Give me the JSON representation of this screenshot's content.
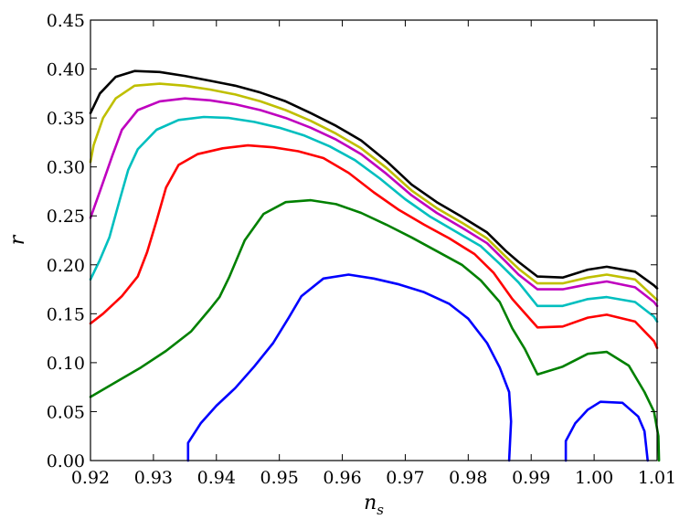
{
  "chart_data": {
    "type": "line",
    "title": "",
    "xlabel": "n",
    "xlabel_sub": "s",
    "ylabel": "r",
    "xlim": [
      0.92,
      1.01
    ],
    "ylim": [
      0.0,
      0.45
    ],
    "xticks": [
      "0.92",
      "0.93",
      "0.94",
      "0.95",
      "0.96",
      "0.97",
      "0.98",
      "0.99",
      "1.00",
      "1.01"
    ],
    "yticks": [
      "0.00",
      "0.05",
      "0.10",
      "0.15",
      "0.20",
      "0.25",
      "0.30",
      "0.35",
      "0.40",
      "0.45"
    ],
    "grid": false,
    "legend": false,
    "series": [
      {
        "color": "#000000",
        "points": [
          [
            0.92,
            0.355
          ],
          [
            0.9215,
            0.375
          ],
          [
            0.924,
            0.392
          ],
          [
            0.927,
            0.398
          ],
          [
            0.931,
            0.397
          ],
          [
            0.935,
            0.393
          ],
          [
            0.939,
            0.388
          ],
          [
            0.943,
            0.383
          ],
          [
            0.947,
            0.376
          ],
          [
            0.951,
            0.367
          ],
          [
            0.955,
            0.355
          ],
          [
            0.959,
            0.342
          ],
          [
            0.963,
            0.327
          ],
          [
            0.967,
            0.306
          ],
          [
            0.971,
            0.282
          ],
          [
            0.975,
            0.264
          ],
          [
            0.979,
            0.249
          ],
          [
            0.983,
            0.233
          ],
          [
            0.986,
            0.214
          ],
          [
            0.988,
            0.203
          ],
          [
            0.991,
            0.188
          ],
          [
            0.995,
            0.187
          ],
          [
            0.999,
            0.195
          ],
          [
            1.002,
            0.198
          ],
          [
            1.0065,
            0.193
          ],
          [
            1.0095,
            0.179
          ],
          [
            1.01,
            0.176
          ]
        ]
      },
      {
        "color": "#bfbf00",
        "points": [
          [
            0.92,
            0.305
          ],
          [
            0.9205,
            0.322
          ],
          [
            0.922,
            0.35
          ],
          [
            0.924,
            0.37
          ],
          [
            0.927,
            0.383
          ],
          [
            0.931,
            0.385
          ],
          [
            0.935,
            0.383
          ],
          [
            0.939,
            0.379
          ],
          [
            0.943,
            0.374
          ],
          [
            0.947,
            0.367
          ],
          [
            0.951,
            0.358
          ],
          [
            0.955,
            0.347
          ],
          [
            0.959,
            0.334
          ],
          [
            0.963,
            0.319
          ],
          [
            0.967,
            0.299
          ],
          [
            0.971,
            0.276
          ],
          [
            0.975,
            0.258
          ],
          [
            0.979,
            0.243
          ],
          [
            0.983,
            0.227
          ],
          [
            0.986,
            0.208
          ],
          [
            0.988,
            0.196
          ],
          [
            0.991,
            0.181
          ],
          [
            0.995,
            0.181
          ],
          [
            0.999,
            0.187
          ],
          [
            1.002,
            0.19
          ],
          [
            1.0065,
            0.185
          ],
          [
            1.0095,
            0.167
          ],
          [
            1.01,
            0.164
          ]
        ]
      },
      {
        "color": "#bf00bf",
        "points": [
          [
            0.92,
            0.248
          ],
          [
            0.9215,
            0.275
          ],
          [
            0.9235,
            0.312
          ],
          [
            0.925,
            0.338
          ],
          [
            0.9275,
            0.358
          ],
          [
            0.931,
            0.367
          ],
          [
            0.935,
            0.37
          ],
          [
            0.939,
            0.368
          ],
          [
            0.943,
            0.364
          ],
          [
            0.947,
            0.358
          ],
          [
            0.951,
            0.35
          ],
          [
            0.955,
            0.34
          ],
          [
            0.959,
            0.328
          ],
          [
            0.963,
            0.313
          ],
          [
            0.967,
            0.293
          ],
          [
            0.971,
            0.271
          ],
          [
            0.975,
            0.253
          ],
          [
            0.979,
            0.238
          ],
          [
            0.983,
            0.222
          ],
          [
            0.986,
            0.203
          ],
          [
            0.988,
            0.19
          ],
          [
            0.991,
            0.175
          ],
          [
            0.995,
            0.175
          ],
          [
            0.999,
            0.18
          ],
          [
            1.002,
            0.183
          ],
          [
            1.0065,
            0.177
          ],
          [
            1.0095,
            0.162
          ],
          [
            1.01,
            0.158
          ]
        ]
      },
      {
        "color": "#00bfbf",
        "points": [
          [
            0.92,
            0.185
          ],
          [
            0.9215,
            0.205
          ],
          [
            0.923,
            0.228
          ],
          [
            0.9245,
            0.263
          ],
          [
            0.926,
            0.297
          ],
          [
            0.9275,
            0.318
          ],
          [
            0.9305,
            0.338
          ],
          [
            0.934,
            0.348
          ],
          [
            0.938,
            0.351
          ],
          [
            0.942,
            0.35
          ],
          [
            0.946,
            0.346
          ],
          [
            0.95,
            0.34
          ],
          [
            0.954,
            0.332
          ],
          [
            0.958,
            0.321
          ],
          [
            0.962,
            0.307
          ],
          [
            0.966,
            0.288
          ],
          [
            0.97,
            0.267
          ],
          [
            0.974,
            0.249
          ],
          [
            0.978,
            0.234
          ],
          [
            0.982,
            0.219
          ],
          [
            0.985,
            0.201
          ],
          [
            0.988,
            0.182
          ],
          [
            0.991,
            0.158
          ],
          [
            0.995,
            0.158
          ],
          [
            0.999,
            0.165
          ],
          [
            1.002,
            0.167
          ],
          [
            1.0065,
            0.162
          ],
          [
            1.0095,
            0.147
          ],
          [
            1.01,
            0.142
          ]
        ]
      },
      {
        "color": "#ff0000",
        "points": [
          [
            0.92,
            0.14
          ],
          [
            0.922,
            0.15
          ],
          [
            0.925,
            0.168
          ],
          [
            0.9275,
            0.188
          ],
          [
            0.929,
            0.213
          ],
          [
            0.9305,
            0.245
          ],
          [
            0.932,
            0.279
          ],
          [
            0.934,
            0.302
          ],
          [
            0.937,
            0.313
          ],
          [
            0.941,
            0.319
          ],
          [
            0.945,
            0.322
          ],
          [
            0.949,
            0.32
          ],
          [
            0.953,
            0.316
          ],
          [
            0.957,
            0.309
          ],
          [
            0.961,
            0.294
          ],
          [
            0.965,
            0.274
          ],
          [
            0.969,
            0.256
          ],
          [
            0.973,
            0.241
          ],
          [
            0.977,
            0.227
          ],
          [
            0.981,
            0.211
          ],
          [
            0.984,
            0.192
          ],
          [
            0.987,
            0.165
          ],
          [
            0.991,
            0.136
          ],
          [
            0.995,
            0.137
          ],
          [
            0.999,
            0.146
          ],
          [
            1.002,
            0.149
          ],
          [
            1.0065,
            0.142
          ],
          [
            1.0095,
            0.122
          ],
          [
            1.01,
            0.115
          ]
        ]
      },
      {
        "color": "#008000",
        "points": [
          [
            0.92,
            0.065
          ],
          [
            0.924,
            0.08
          ],
          [
            0.928,
            0.095
          ],
          [
            0.932,
            0.112
          ],
          [
            0.936,
            0.132
          ],
          [
            0.939,
            0.155
          ],
          [
            0.9405,
            0.167
          ],
          [
            0.942,
            0.187
          ],
          [
            0.9445,
            0.225
          ],
          [
            0.9475,
            0.252
          ],
          [
            0.951,
            0.264
          ],
          [
            0.955,
            0.266
          ],
          [
            0.959,
            0.262
          ],
          [
            0.963,
            0.253
          ],
          [
            0.967,
            0.241
          ],
          [
            0.971,
            0.228
          ],
          [
            0.975,
            0.214
          ],
          [
            0.979,
            0.2
          ],
          [
            0.982,
            0.184
          ],
          [
            0.985,
            0.162
          ],
          [
            0.987,
            0.135
          ],
          [
            0.989,
            0.114
          ],
          [
            0.991,
            0.088
          ],
          [
            0.995,
            0.096
          ],
          [
            0.999,
            0.109
          ],
          [
            1.002,
            0.111
          ],
          [
            1.0055,
            0.097
          ],
          [
            1.008,
            0.07
          ],
          [
            1.0095,
            0.05
          ],
          [
            1.0102,
            0.025
          ],
          [
            1.0103,
            0.0
          ]
        ]
      },
      {
        "color": "#0000ff",
        "points": [
          [
            0.9355,
            0.0
          ],
          [
            0.9355,
            0.018
          ],
          [
            0.9375,
            0.038
          ],
          [
            0.94,
            0.056
          ],
          [
            0.943,
            0.074
          ],
          [
            0.946,
            0.096
          ],
          [
            0.949,
            0.12
          ],
          [
            0.9515,
            0.146
          ],
          [
            0.9535,
            0.168
          ],
          [
            0.957,
            0.186
          ],
          [
            0.961,
            0.19
          ],
          [
            0.965,
            0.186
          ],
          [
            0.969,
            0.18
          ],
          [
            0.973,
            0.172
          ],
          [
            0.977,
            0.16
          ],
          [
            0.98,
            0.145
          ],
          [
            0.983,
            0.12
          ],
          [
            0.985,
            0.095
          ],
          [
            0.9865,
            0.07
          ],
          [
            0.9868,
            0.04
          ],
          [
            0.9865,
            0.0
          ]
        ]
      },
      {
        "color": "#0000ff",
        "points": [
          [
            0.9955,
            0.0
          ],
          [
            0.9955,
            0.02
          ],
          [
            0.997,
            0.038
          ],
          [
            0.999,
            0.052
          ],
          [
            1.001,
            0.06
          ],
          [
            1.0045,
            0.059
          ],
          [
            1.007,
            0.045
          ],
          [
            1.008,
            0.03
          ],
          [
            1.0085,
            0.0
          ]
        ]
      }
    ]
  }
}
